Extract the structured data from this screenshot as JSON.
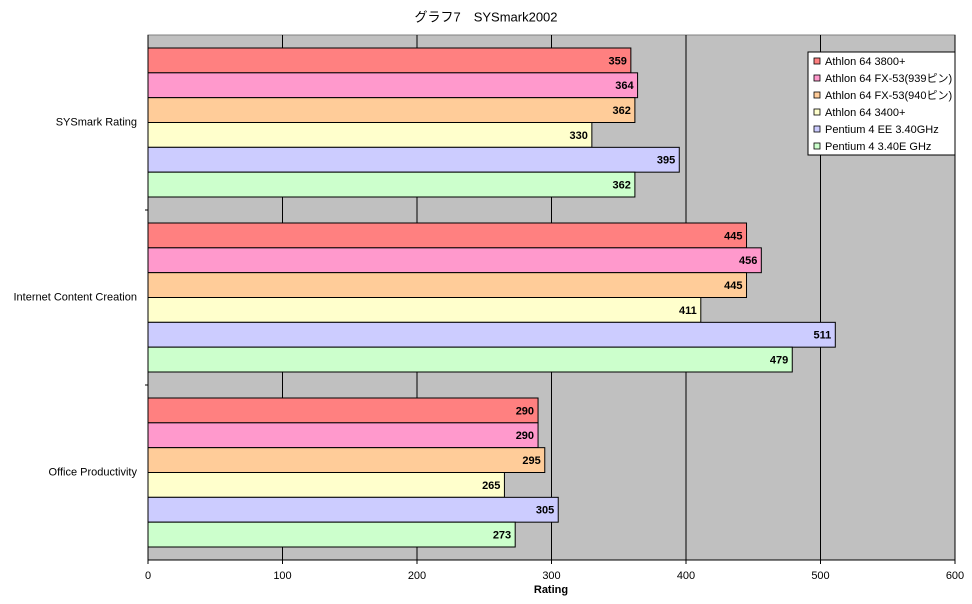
{
  "chart_data": {
    "type": "hbar",
    "title": "グラフ7　SYSmark2002",
    "x_label": "Rating",
    "categories": [
      "SYSmark Rating",
      "Internet Content Creation",
      "Office Productivity"
    ],
    "series": [
      {
        "name": "Athlon 64 3800+",
        "color": "#ff8080",
        "values": [
          359,
          445,
          290
        ]
      },
      {
        "name": "Athlon 64 FX-53(939ピン)",
        "color": "#ff99cc",
        "values": [
          364,
          456,
          290
        ]
      },
      {
        "name": "Athlon 64 FX-53(940ピン)",
        "color": "#ffcc99",
        "values": [
          362,
          445,
          295
        ]
      },
      {
        "name": "Athlon 64 3400+",
        "color": "#ffffcc",
        "values": [
          330,
          411,
          265
        ]
      },
      {
        "name": "Pentium 4 EE 3.40GHz",
        "color": "#ccccff",
        "values": [
          395,
          511,
          305
        ]
      },
      {
        "name": "Pentium 4 3.40E GHz",
        "color": "#ccffcc",
        "values": [
          362,
          479,
          273
        ]
      }
    ],
    "xlim": [
      0,
      600
    ],
    "xticks": [
      0,
      100,
      200,
      300,
      400,
      500,
      600
    ],
    "grid": true,
    "legend": "top-right",
    "plot_background": "#c0c0c0"
  }
}
